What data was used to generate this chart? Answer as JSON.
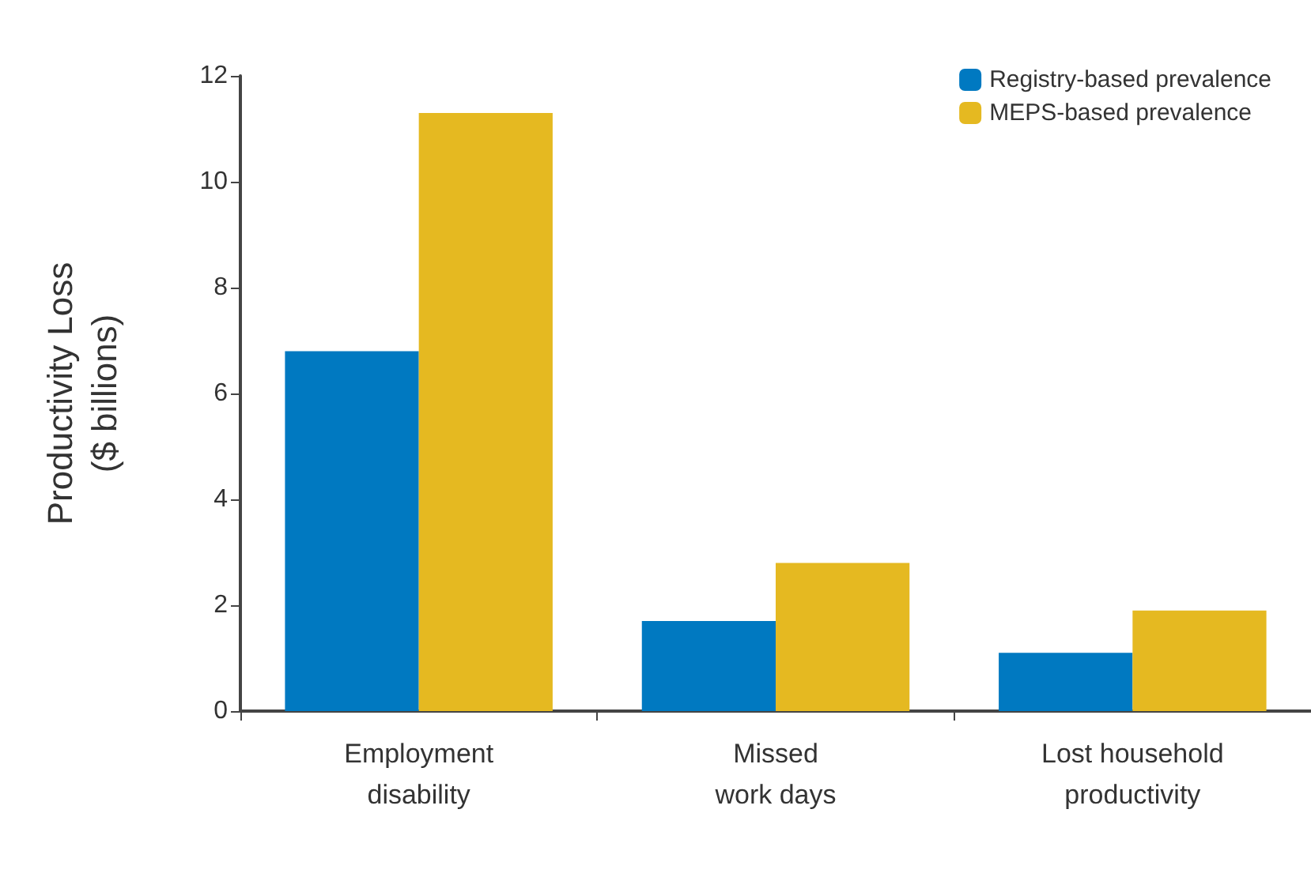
{
  "chart_data": {
    "type": "bar",
    "ylabel": "Productivity Loss\n($ billions)",
    "categories": [
      "Employment\ndisability",
      "Missed\nwork days",
      "Lost household\nproductivity"
    ],
    "series": [
      {
        "name": "Registry-based prevalence",
        "color": "#0079c1",
        "values": [
          6.8,
          1.7,
          1.1
        ]
      },
      {
        "name": "MEPS-based prevalence",
        "color": "#e5b921",
        "values": [
          11.3,
          2.8,
          1.9
        ]
      }
    ],
    "ylim": [
      0,
      12
    ],
    "yticks": [
      0,
      2,
      4,
      6,
      8,
      10,
      12
    ],
    "grid": false,
    "legend": "top right"
  }
}
